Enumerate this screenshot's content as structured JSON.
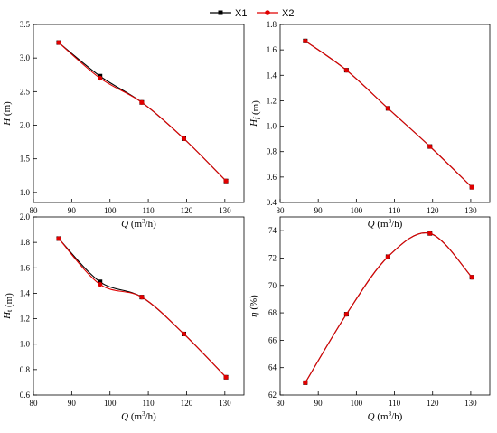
{
  "legend": [
    {
      "name": "X1",
      "color": "#000000",
      "marker": "square"
    },
    {
      "name": "X2",
      "color": "#e00000",
      "marker": "circle"
    }
  ],
  "chart_data": [
    {
      "type": "line",
      "panel": "top-left",
      "xlabel": "Q (m3/h)",
      "ylabel": "H (m)",
      "xlim": [
        80,
        135
      ],
      "ylim": [
        0.85,
        3.5
      ],
      "xticks": [
        80,
        90,
        100,
        110,
        120,
        130
      ],
      "yticks": [
        1.0,
        1.5,
        2.0,
        2.5,
        3.0,
        3.5
      ],
      "x": [
        86.6,
        97.4,
        108.3,
        119.3,
        130.3
      ],
      "series": [
        {
          "name": "X1",
          "color": "#000000",
          "values": [
            3.23,
            2.73,
            2.34,
            1.8,
            1.17
          ]
        },
        {
          "name": "X2",
          "color": "#e00000",
          "values": [
            3.23,
            2.7,
            2.34,
            1.8,
            1.17
          ]
        }
      ],
      "grid": false
    },
    {
      "type": "line",
      "panel": "top-right",
      "xlabel": "Q (m3/h)",
      "ylabel": "Hf (m)",
      "xlim": [
        80,
        135
      ],
      "ylim": [
        0.4,
        1.8
      ],
      "xticks": [
        80,
        90,
        100,
        110,
        120,
        130
      ],
      "yticks": [
        0.4,
        0.6,
        0.8,
        1.0,
        1.2,
        1.4,
        1.6,
        1.8
      ],
      "x": [
        86.6,
        97.4,
        108.3,
        119.3,
        130.3
      ],
      "series": [
        {
          "name": "X1",
          "color": "#000000",
          "values": [
            1.67,
            1.44,
            1.14,
            0.84,
            0.52
          ]
        },
        {
          "name": "X2",
          "color": "#e00000",
          "values": [
            1.67,
            1.44,
            1.14,
            0.84,
            0.52
          ]
        }
      ],
      "grid": false
    },
    {
      "type": "line",
      "panel": "bottom-left",
      "xlabel": "Q (m3/h)",
      "ylabel": "Ht (m)",
      "xlim": [
        80,
        135
      ],
      "ylim": [
        0.6,
        2.0
      ],
      "xticks": [
        80,
        90,
        100,
        110,
        120,
        130
      ],
      "yticks": [
        0.6,
        0.8,
        1.0,
        1.2,
        1.4,
        1.6,
        1.8,
        2.0
      ],
      "x": [
        86.6,
        97.4,
        108.3,
        119.3,
        130.3
      ],
      "series": [
        {
          "name": "X1",
          "color": "#000000",
          "values": [
            1.83,
            1.49,
            1.37,
            1.08,
            0.74
          ]
        },
        {
          "name": "X2",
          "color": "#e00000",
          "values": [
            1.83,
            1.47,
            1.37,
            1.08,
            0.74
          ]
        }
      ],
      "grid": false
    },
    {
      "type": "line",
      "panel": "bottom-right",
      "xlabel": "Q (m3/h)",
      "ylabel": "η (%)",
      "xlim": [
        80,
        135
      ],
      "ylim": [
        62,
        75
      ],
      "xticks": [
        80,
        90,
        100,
        110,
        120,
        130
      ],
      "yticks": [
        62,
        64,
        66,
        68,
        70,
        72,
        74
      ],
      "x": [
        86.6,
        97.4,
        108.3,
        119.3,
        130.3
      ],
      "series": [
        {
          "name": "X1",
          "color": "#000000",
          "values": [
            62.9,
            67.9,
            72.1,
            73.8,
            70.6
          ]
        },
        {
          "name": "X2",
          "color": "#e00000",
          "values": [
            62.9,
            67.9,
            72.1,
            73.8,
            70.6
          ]
        }
      ],
      "grid": false
    }
  ]
}
